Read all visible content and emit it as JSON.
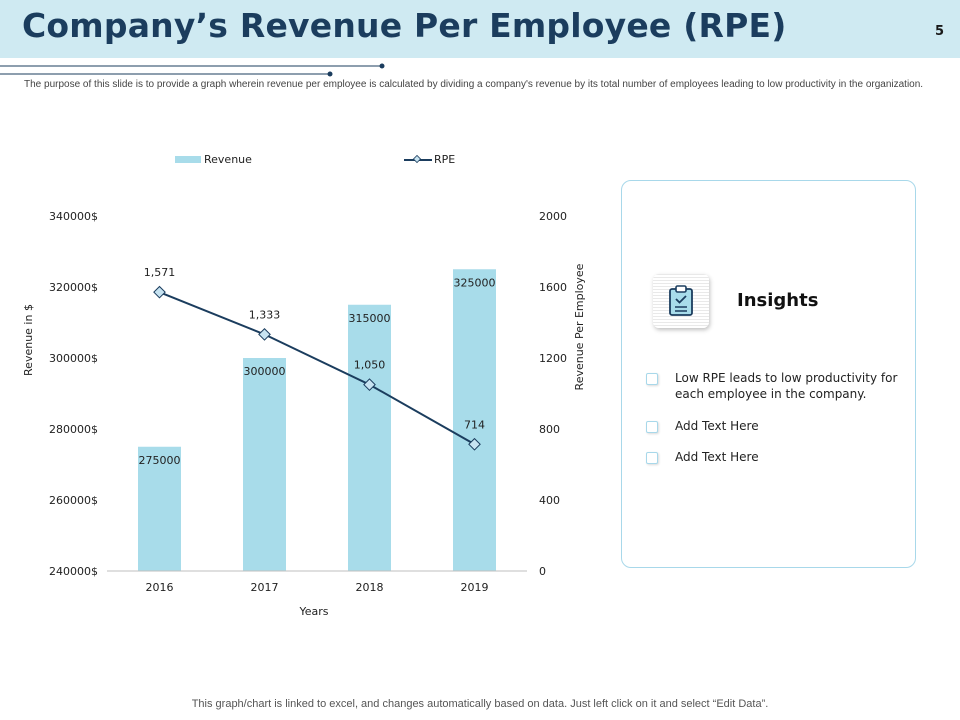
{
  "header": {
    "title": "Company’s Revenue Per Employee (RPE)",
    "page_number": "5"
  },
  "subtitle": "The purpose of this slide is to provide a graph wherein revenue per employee is calculated by dividing a company's revenue by its total number of employees leading to low productivity in the organization.",
  "chart_data": {
    "type": "bar",
    "categories": [
      "2016",
      "2017",
      "2018",
      "2019"
    ],
    "series": [
      {
        "name": "Revenue",
        "type": "bar",
        "axis": "left",
        "values": [
          275000,
          300000,
          315000,
          325000
        ],
        "labels": [
          "275000",
          "300000",
          "315000",
          "325000"
        ],
        "color": "#a8dcea"
      },
      {
        "name": "RPE",
        "type": "line",
        "axis": "right",
        "values": [
          1571,
          1333,
          1050,
          714
        ],
        "labels": [
          "1,571",
          "1,333",
          "1,050",
          "714"
        ],
        "color": "#1b3d5e"
      }
    ],
    "xlabel": "Years",
    "ylabel": "Revenue in $",
    "y2label": "Revenue Per Employee",
    "ylim": [
      240000,
      340000
    ],
    "y2lim": [
      0,
      2000
    ],
    "yticks": [
      240000,
      260000,
      280000,
      300000,
      320000,
      340000
    ],
    "ytick_labels": [
      "240000$",
      "260000$",
      "280000$",
      "300000$",
      "320000$",
      "340000$"
    ],
    "y2ticks": [
      0,
      400,
      800,
      1200,
      1600,
      2000
    ],
    "y2tick_labels": [
      "0",
      "400",
      "800",
      "1200",
      "1600",
      "2000"
    ],
    "legend": [
      "Revenue",
      "RPE"
    ],
    "legend_position": "top",
    "grid": false
  },
  "insights": {
    "title": "Insights",
    "items": [
      "Low RPE leads to low productivity for each employee in the company.",
      "Add Text Here",
      "Add Text Here"
    ]
  },
  "footer": "This graph/chart is linked to excel, and changes automatically based on data. Just left click on it and select “Edit Data”.",
  "colors": {
    "header_bg": "#cfeaf2",
    "title": "#1b3d5e",
    "bar": "#a8dcea",
    "line": "#1b3d5e",
    "marker": "#c7e3f1",
    "card_border": "#a8d8ea"
  }
}
